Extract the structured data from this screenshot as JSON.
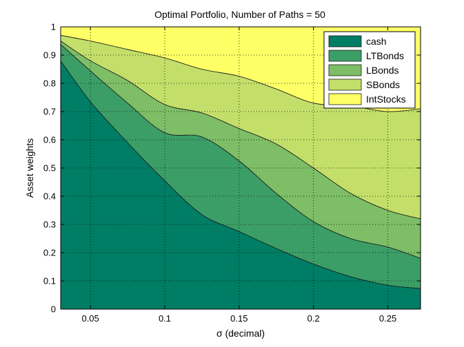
{
  "chart_data": {
    "type": "area",
    "stacked": true,
    "title": "Optimal Portfolio, Number of Paths = 50",
    "xlabel": "σ (decimal)",
    "ylabel": "Asset weights",
    "xlim": [
      0.03,
      0.272
    ],
    "ylim": [
      0,
      1
    ],
    "xticks": [
      0.05,
      0.1,
      0.15,
      0.2,
      0.25
    ],
    "xtick_labels": [
      "0.05",
      "0.1",
      "0.15",
      "0.2",
      "0.25"
    ],
    "yticks": [
      0,
      0.1,
      0.2,
      0.3,
      0.4,
      0.5,
      0.6,
      0.7,
      0.8,
      0.9,
      1
    ],
    "ytick_labels": [
      "0",
      "0.1",
      "0.2",
      "0.3",
      "0.4",
      "0.5",
      "0.6",
      "0.7",
      "0.8",
      "0.9",
      "1"
    ],
    "grid": true,
    "legend_position": "top-right",
    "x": [
      0.03,
      0.05,
      0.075,
      0.1,
      0.125,
      0.15,
      0.175,
      0.2,
      0.225,
      0.25,
      0.272
    ],
    "series": [
      {
        "name": "cash",
        "color": "#007d65",
        "values": [
          0.88,
          0.735,
          0.59,
          0.455,
          0.335,
          0.275,
          0.215,
          0.16,
          0.115,
          0.085,
          0.073
        ]
      },
      {
        "name": "LTBonds",
        "color": "#3c9e67",
        "values": [
          0.058,
          0.109,
          0.14,
          0.17,
          0.275,
          0.25,
          0.195,
          0.15,
          0.135,
          0.135,
          0.107
        ]
      },
      {
        "name": "LBonds",
        "color": "#7dbe66",
        "values": [
          0.012,
          0.036,
          0.08,
          0.1,
          0.085,
          0.115,
          0.175,
          0.19,
          0.16,
          0.13,
          0.14
        ]
      },
      {
        "name": "SBonds",
        "color": "#c3df6a",
        "values": [
          0.02,
          0.07,
          0.11,
          0.165,
          0.155,
          0.185,
          0.195,
          0.23,
          0.31,
          0.35,
          0.39
        ]
      },
      {
        "name": "IntStocks",
        "color": "#ffff66",
        "values": [
          0.03,
          0.05,
          0.08,
          0.11,
          0.15,
          0.175,
          0.22,
          0.27,
          0.28,
          0.3,
          0.29
        ]
      }
    ]
  }
}
